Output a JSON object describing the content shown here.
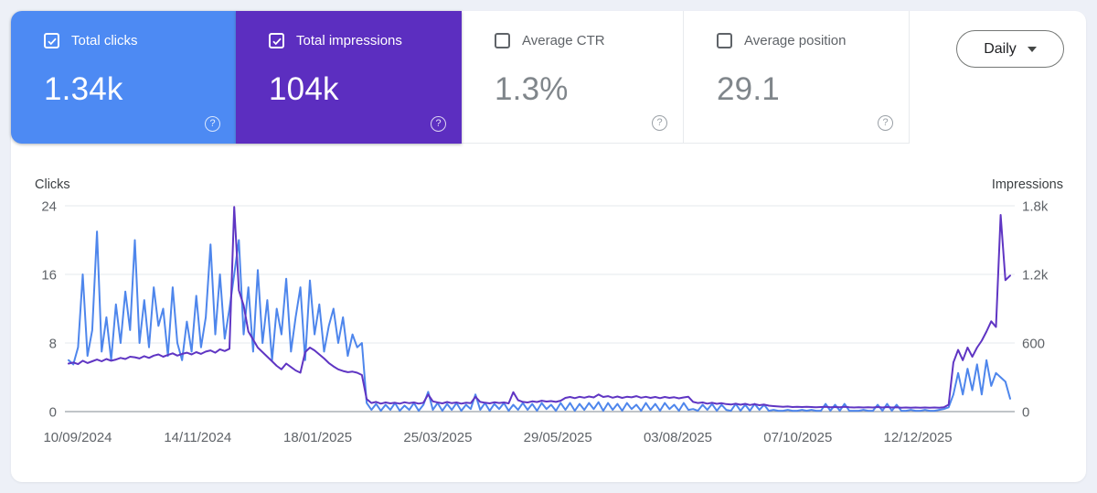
{
  "icons": {
    "help": "?"
  },
  "controls": {
    "granularity": "Daily"
  },
  "metrics": [
    {
      "label": "Total clicks",
      "value": "1.34k",
      "checked": true,
      "color": "#4d8af3"
    },
    {
      "label": "Total impressions",
      "value": "104k",
      "checked": true,
      "color": "#5c2ec0"
    },
    {
      "label": "Average CTR",
      "value": "1.3%",
      "checked": false
    },
    {
      "label": "Average position",
      "value": "29.1",
      "checked": false
    }
  ],
  "chart_data": {
    "type": "line",
    "grid": true,
    "legend_position": "none",
    "left_axis": {
      "label": "Clicks",
      "max": 24,
      "ticks": [
        "0",
        "8",
        "16",
        "24"
      ]
    },
    "right_axis": {
      "label": "Impressions",
      "max": 1800,
      "ticks": [
        "0",
        "600",
        "1.2k",
        "1.8k"
      ]
    },
    "x_tick_labels": [
      "10/09/2024",
      "14/11/2024",
      "18/01/2025",
      "25/03/2025",
      "29/05/2025",
      "03/08/2025",
      "07/10/2025",
      "12/12/2025"
    ],
    "series": [
      {
        "name": "Total clicks",
        "axis": "left",
        "color": "#4e86ec",
        "values": [
          6,
          5.5,
          7.5,
          16,
          6.5,
          9.5,
          21,
          7,
          11,
          6,
          12.5,
          8,
          14,
          9.5,
          20,
          8,
          13,
          7.5,
          14.5,
          10,
          12,
          6.5,
          14.5,
          8,
          6,
          10.5,
          7,
          13.5,
          7.5,
          11,
          19.5,
          9,
          16,
          8.5,
          12,
          16,
          20,
          9,
          14.5,
          7,
          16.5,
          8,
          13,
          6,
          12,
          9,
          15.5,
          7,
          11,
          14.5,
          6,
          15.3,
          9,
          12.5,
          7,
          10,
          12,
          8,
          11,
          6.5,
          9,
          7.5,
          8,
          1,
          0.2,
          0.9,
          0.1,
          0.8,
          0.2,
          1,
          0.1,
          0.7,
          0.2,
          1,
          0.1,
          0.8,
          2.3,
          0.2,
          1,
          0.1,
          0.9,
          0.2,
          1,
          0.1,
          0.8,
          0.3,
          2,
          0.2,
          1,
          0.1,
          0.9,
          0.3,
          1,
          0.1,
          0.8,
          0.2,
          1,
          0.2,
          0.9,
          0.1,
          1,
          0.3,
          0.8,
          0.1,
          1,
          0.2,
          1,
          0.1,
          0.9,
          0.2,
          1,
          0.3,
          1.1,
          0.1,
          1,
          0.2,
          0.9,
          0.1,
          1,
          0.3,
          0.8,
          0.1,
          1,
          0.2,
          0.9,
          0.1,
          1,
          0.3,
          0.8,
          0.1,
          1,
          0.2,
          0.3,
          0.1,
          0.8,
          0.2,
          0.9,
          0.1,
          0.8,
          0.2,
          0.1,
          0.9,
          0.1,
          0.8,
          0.1,
          0.9,
          0.2,
          0.8,
          0.1,
          0.2,
          0.1,
          0.1,
          0.2,
          0.1,
          0.1,
          0.2,
          0.1,
          0.2,
          0.1,
          0.1,
          0.9,
          0.1,
          0.8,
          0.1,
          0.9,
          0.1,
          0.1,
          0.1,
          0.2,
          0.1,
          0.1,
          0.8,
          0.1,
          0.9,
          0.1,
          0.8,
          0.1,
          0.1,
          0.2,
          0.1,
          0.1,
          0.2,
          0.1,
          0.1,
          0.2,
          0.3,
          0.5,
          2,
          4.5,
          2,
          5,
          2.5,
          5.5,
          2,
          6,
          3,
          4.5,
          4,
          3.5,
          1.5
        ]
      },
      {
        "name": "Total impressions",
        "axis": "right",
        "color": "#5f35c3",
        "values": [
          420,
          430,
          415,
          445,
          425,
          440,
          455,
          440,
          460,
          445,
          455,
          470,
          460,
          480,
          475,
          465,
          485,
          470,
          490,
          500,
          480,
          495,
          510,
          490,
          505,
          515,
          500,
          520,
          505,
          525,
          535,
          515,
          545,
          530,
          550,
          1790,
          1060,
          930,
          700,
          630,
          560,
          520,
          480,
          440,
          400,
          370,
          420,
          390,
          360,
          340,
          520,
          560,
          535,
          500,
          465,
          425,
          395,
          370,
          355,
          345,
          350,
          340,
          320,
          110,
          75,
          85,
          70,
          80,
          72,
          78,
          70,
          82,
          74,
          80,
          70,
          78,
          150,
          90,
          80,
          72,
          84,
          74,
          80,
          70,
          78,
          74,
          130,
          85,
          78,
          72,
          82,
          75,
          80,
          72,
          170,
          100,
          85,
          80,
          90,
          84,
          95,
          88,
          92,
          85,
          95,
          120,
          128,
          118,
          130,
          122,
          132,
          124,
          150,
          128,
          135,
          122,
          132,
          120,
          130,
          125,
          135,
          122,
          130,
          120,
          128,
          118,
          128,
          120,
          126,
          116,
          124,
          130,
          85,
          75,
          80,
          70,
          78,
          68,
          74,
          66,
          62,
          70,
          60,
          68,
          58,
          66,
          56,
          62,
          52,
          48,
          45,
          42,
          45,
          40,
          42,
          40,
          42,
          40,
          38,
          40,
          42,
          38,
          40,
          38,
          42,
          38,
          36,
          38,
          36,
          38,
          36,
          40,
          36,
          40,
          36,
          38,
          34,
          36,
          34,
          36,
          34,
          36,
          34,
          36,
          34,
          38,
          60,
          430,
          540,
          450,
          560,
          480,
          560,
          620,
          700,
          790,
          740,
          1720,
          1150,
          1190
        ]
      }
    ]
  }
}
